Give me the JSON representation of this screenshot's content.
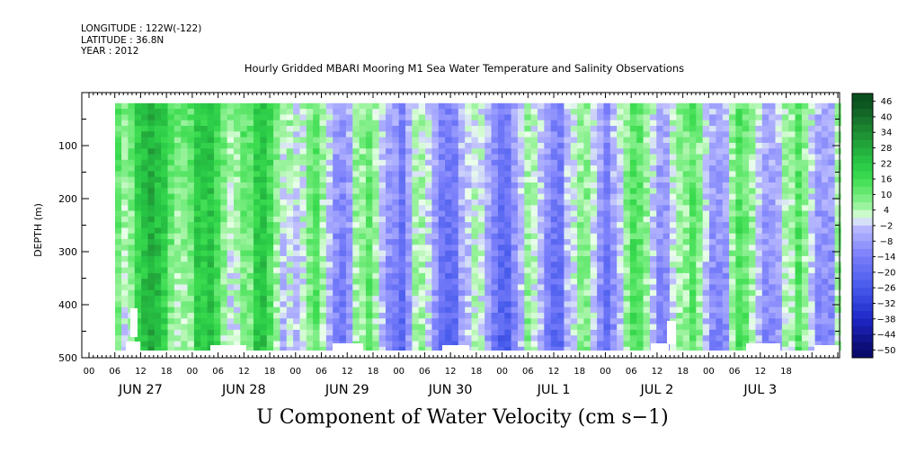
{
  "header": {
    "longitude": "LONGITUDE : 122W(-122)",
    "latitude": "LATITUDE : 36.8N",
    "year": "YEAR : 2012"
  },
  "colors": {
    "strong_positive": "#0a5a20",
    "positive": "#2ad84a",
    "near_zero": "#e6ffe6",
    "negative": "#8c8cff",
    "strong_negative": "#0a0a8c"
  },
  "chart_data": {
    "type": "heatmap",
    "title": "Hourly Gridded MBARI Mooring M1 Sea Water Temperature and Salinity Observations",
    "xlabel": "U Component of Water Velocity (cm s−1)",
    "ylabel": "DEPTH (m)",
    "y_axis": {
      "range": [
        500,
        0
      ],
      "ticks": [
        100,
        200,
        300,
        400,
        500
      ],
      "data_depth_range": [
        20,
        490
      ]
    },
    "x_axis": {
      "hour_labels": [
        "00",
        "06",
        "12",
        "18",
        "00",
        "06",
        "12",
        "18",
        "00",
        "06",
        "12",
        "18",
        "00",
        "06",
        "12",
        "18",
        "00",
        "06",
        "12",
        "18",
        "00",
        "06",
        "12",
        "18",
        "00",
        "06",
        "12",
        "18"
      ],
      "day_labels": [
        "JUN 27",
        "JUN 28",
        "JUN 29",
        "JUN 30",
        "JUL  1",
        "JUL  2",
        "JUL  3"
      ],
      "data_start_hour": 6,
      "total_hours": 168
    },
    "colorbar": {
      "labels": [
        "46",
        "40",
        "34",
        "28",
        "22",
        "16",
        "10",
        "4",
        "−2",
        "−8",
        "−14",
        "−20",
        "−26",
        "−32",
        "−38",
        "−44",
        "−50"
      ],
      "min": -50,
      "max": 46,
      "step": 6
    },
    "day_mean_u": [
      {
        "day": "JUN 27",
        "u": 18
      },
      {
        "day": "JUN 28",
        "u": 15
      },
      {
        "day": "JUN 29",
        "u": 2
      },
      {
        "day": "JUN 30",
        "u": -6
      },
      {
        "day": "JUL  1",
        "u": -4
      },
      {
        "day": "JUL  2",
        "u": 4
      },
      {
        "day": "JUL  3",
        "u": 2
      }
    ]
  }
}
